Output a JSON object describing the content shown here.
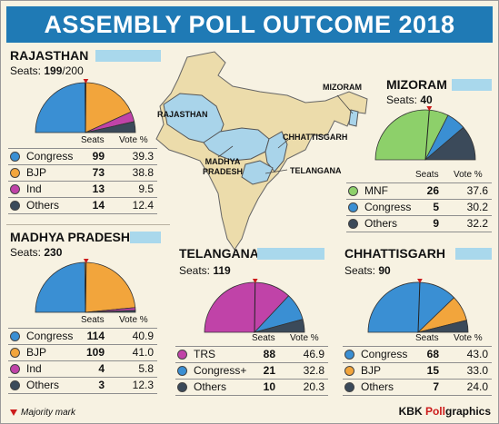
{
  "title": "ASSEMBLY POLL OUTCOME 2018",
  "legend_headers": {
    "seats": "Seats",
    "vote": "Vote %"
  },
  "seats_label": "Seats:",
  "footnote": "Majority mark",
  "credit": {
    "prefix": "KBK ",
    "highlight": "Poll",
    "suffix": "graphics"
  },
  "map_labels": {
    "rajasthan": "RAJASTHAN",
    "madhya_pradesh_1": "MADHYA",
    "madhya_pradesh_2": "PRADESH",
    "chhattisgarh": "CHHATTISGARH",
    "telangana": "TELANGANA",
    "mizoram": "MIZORAM"
  },
  "colors": {
    "banner": "#1f7ab5",
    "congress": "#3a8fd3",
    "bjp": "#f2a53c",
    "ind": "#c043a8",
    "others": "#3b4a5a",
    "mnf": "#8dd06a",
    "trs": "#c043a8",
    "majority_mark": "#cc1b1b",
    "highlight_state": "#a9d4ea",
    "map_land": "#ecdcab"
  },
  "chart_data": [
    {
      "type": "pie",
      "title": "RAJASTHAN",
      "total_display": "199",
      "total_suffix": "/200",
      "majority": 100,
      "series": [
        {
          "name": "Congress",
          "seats": 99,
          "vote": "39.3",
          "color": "#3a8fd3"
        },
        {
          "name": "BJP",
          "seats": 73,
          "vote": "38.8",
          "color": "#f2a53c"
        },
        {
          "name": "Ind",
          "seats": 13,
          "vote": "9.5",
          "color": "#c043a8"
        },
        {
          "name": "Others",
          "seats": 14,
          "vote": "12.4",
          "color": "#3b4a5a"
        }
      ]
    },
    {
      "type": "pie",
      "title": "MIZORAM",
      "total_display": "40",
      "total_suffix": "",
      "majority": 21,
      "series": [
        {
          "name": "MNF",
          "seats": 26,
          "vote": "37.6",
          "color": "#8dd06a"
        },
        {
          "name": "Congress",
          "seats": 5,
          "vote": "30.2",
          "color": "#3a8fd3"
        },
        {
          "name": "Others",
          "seats": 9,
          "vote": "32.2",
          "color": "#3b4a5a"
        }
      ]
    },
    {
      "type": "pie",
      "title": "MADHYA PRADESH",
      "total_display": "230",
      "total_suffix": "",
      "majority": 116,
      "series": [
        {
          "name": "Congress",
          "seats": 114,
          "vote": "40.9",
          "color": "#3a8fd3"
        },
        {
          "name": "BJP",
          "seats": 109,
          "vote": "41.0",
          "color": "#f2a53c"
        },
        {
          "name": "Ind",
          "seats": 4,
          "vote": "5.8",
          "color": "#c043a8"
        },
        {
          "name": "Others",
          "seats": 3,
          "vote": "12.3",
          "color": "#3b4a5a"
        }
      ]
    },
    {
      "type": "pie",
      "title": "TELANGANA",
      "total_display": "119",
      "total_suffix": "",
      "majority": 60,
      "series": [
        {
          "name": "TRS",
          "seats": 88,
          "vote": "46.9",
          "color": "#c043a8"
        },
        {
          "name": "Congress+",
          "seats": 21,
          "vote": "32.8",
          "color": "#3a8fd3"
        },
        {
          "name": "Others",
          "seats": 10,
          "vote": "20.3",
          "color": "#3b4a5a"
        }
      ]
    },
    {
      "type": "pie",
      "title": "CHHATTISGARH",
      "total_display": "90",
      "total_suffix": "",
      "majority": 46,
      "series": [
        {
          "name": "Congress",
          "seats": 68,
          "vote": "43.0",
          "color": "#3a8fd3"
        },
        {
          "name": "BJP",
          "seats": 15,
          "vote": "33.0",
          "color": "#f2a53c"
        },
        {
          "name": "Others",
          "seats": 7,
          "vote": "24.0",
          "color": "#3b4a5a"
        }
      ]
    }
  ]
}
